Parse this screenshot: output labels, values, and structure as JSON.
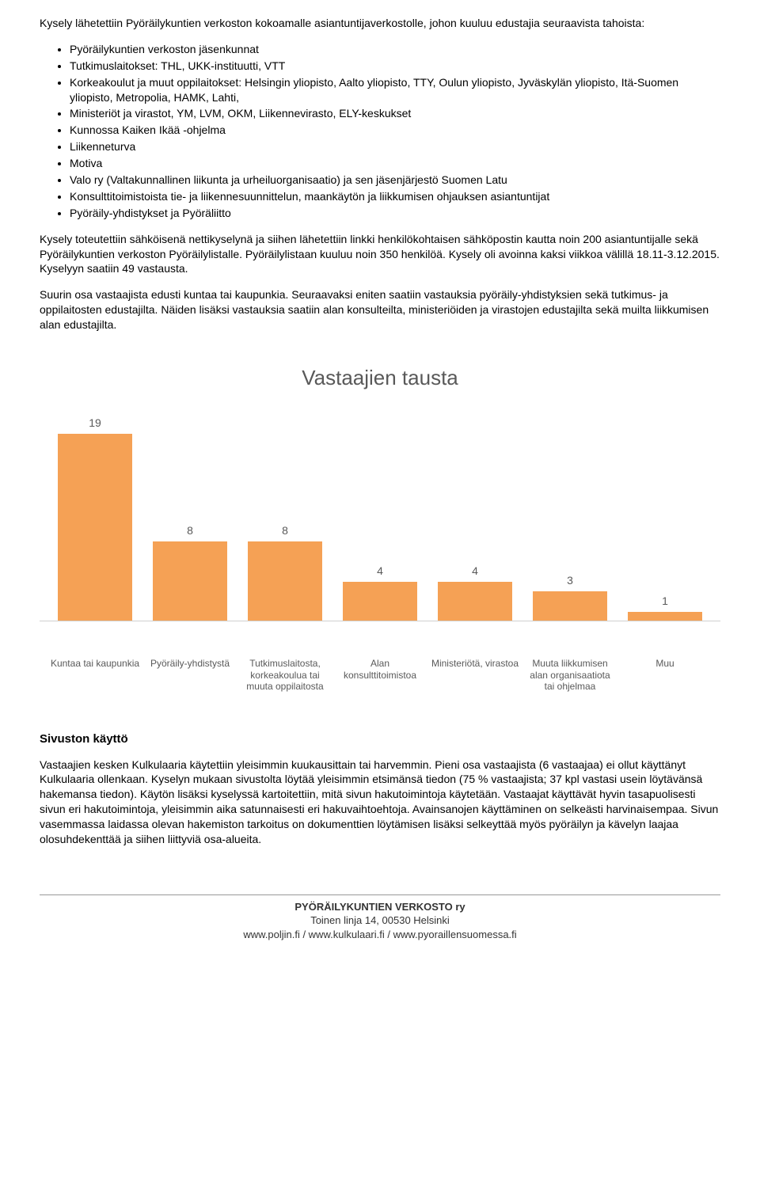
{
  "intro": "Kysely lähetettiin Pyöräilykuntien verkoston kokoamalle asiantuntijaverkostolle, johon kuuluu edustajia seuraavista tahoista:",
  "bullets": [
    "Pyöräilykuntien verkoston jäsenkunnat",
    "Tutkimuslaitokset: THL, UKK-instituutti, VTT",
    "Korkeakoulut ja muut oppilaitokset: Helsingin yliopisto, Aalto yliopisto, TTY, Oulun yliopisto, Jyväskylän yliopisto, Itä-Suomen yliopisto, Metropolia, HAMK, Lahti,",
    "Ministeriöt ja virastot, YM, LVM, OKM, Liikennevirasto, ELY-keskukset",
    "Kunnossa Kaiken Ikää -ohjelma",
    "Liikenneturva",
    "Motiva",
    "Valo ry (Valtakunnallinen liikunta ja urheiluorganisaatio) ja sen jäsenjärjestö Suomen Latu",
    "Konsulttitoimistoista tie- ja liikennesuunnittelun, maankäytön ja liikkumisen ohjauksen asiantuntijat",
    "Pyöräily-yhdistykset ja Pyöräliitto"
  ],
  "para2": "Kysely toteutettiin sähköisenä nettikyselynä ja siihen lähetettiin linkki henkilökohtaisen sähköpostin kautta noin 200 asiantuntijalle sekä Pyöräilykuntien verkoston Pyöräilylistalle. Pyöräilylistaan kuuluu noin 350 henkilöä. Kysely oli avoinna kaksi viikkoa välillä 18.11-3.12.2015. Kyselyyn saatiin 49 vastausta.",
  "para3": "Suurin osa vastaajista edusti kuntaa tai kaupunkia. Seuraavaksi eniten saatiin vastauksia pyöräily-yhdistyksien sekä tutkimus- ja oppilaitosten edustajilta. Näiden lisäksi vastauksia saatiin alan konsulteilta, ministeriöiden ja virastojen edustajilta sekä muilta liikkumisen alan edustajilta.",
  "chart": {
    "type": "bar",
    "title": "Vastaajien tausta",
    "title_fontsize": 26,
    "title_color": "#595959",
    "bar_color": "#f5a155",
    "axis_color": "#d0d0d0",
    "value_color": "#595959",
    "label_color": "#595959",
    "label_fontsize": 12,
    "value_fontsize": 14,
    "background_color": "#ffffff",
    "bar_width": 0.78,
    "ymax": 19,
    "categories": [
      "Kuntaa tai kaupunkia",
      "Pyöräily-yhdistystä",
      "Tutkimuslaitosta, korkeakoulua tai muuta oppilaitosta",
      "Alan konsulttitoimistoa",
      "Ministeriötä, virastoa",
      "Muuta liikkumisen alan organisaatiota tai ohjelmaa",
      "Muu"
    ],
    "values": [
      19,
      8,
      8,
      4,
      4,
      3,
      1
    ]
  },
  "section2_title": "Sivuston käyttö",
  "section2_body": "Vastaajien kesken Kulkulaaria käytettiin yleisimmin kuukausittain tai harvemmin. Pieni osa vastaajista (6 vastaajaa) ei ollut käyttänyt Kulkulaaria ollenkaan. Kyselyn mukaan sivustolta löytää yleisimmin etsimänsä tiedon (75 % vastaajista; 37 kpl vastasi usein löytävänsä hakemansa tiedon). Käytön lisäksi kyselyssä kartoitettiin, mitä sivun hakutoimintoja käytetään. Vastaajat käyttävät hyvin tasapuolisesti sivun eri hakutoimintoja, yleisimmin aika satunnaisesti eri hakuvaihtoehtoja. Avainsanojen käyttäminen on selkeästi harvinaisempaa. Sivun vasemmassa laidassa olevan hakemiston tarkoitus on dokumenttien löytämisen lisäksi selkeyttää myös pyöräilyn ja kävelyn laajaa olosuhdekenttää ja siihen liittyviä osa-alueita.",
  "footer": {
    "name": "PYÖRÄILYKUNTIEN VERKOSTO ry",
    "address": "Toinen linja 14, 00530 Helsinki",
    "urls": "www.poljin.fi / www.kulkulaari.fi / www.pyoraillensuomessa.fi"
  }
}
